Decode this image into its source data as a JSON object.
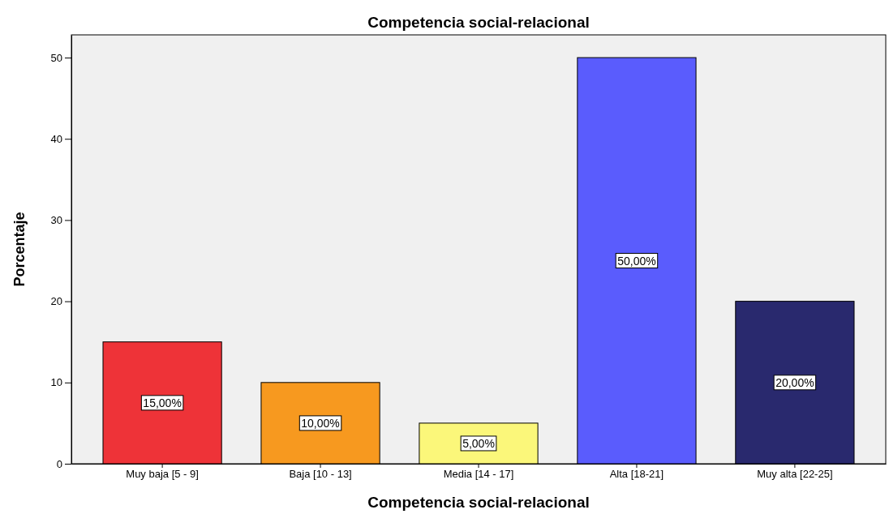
{
  "chart_data": {
    "type": "bar",
    "title": "Competencia social-relacional",
    "xlabel": "Competencia social-relacional",
    "ylabel": "Porcentaje",
    "categories": [
      "Muy baja [5 - 9]",
      "Baja [10 - 13]",
      "Media [14 - 17]",
      "Alta [18-21]",
      "Muy alta [22-25]"
    ],
    "values": [
      15,
      10,
      5,
      50,
      20
    ],
    "colors": [
      "#ee3338",
      "#f7991f",
      "#fbf77a",
      "#5a5cfd",
      "#29296e"
    ],
    "value_labels": [
      "15,00%",
      "10,00%",
      "5,00%",
      "50,00%",
      "20,00%"
    ],
    "ylim": [
      0,
      52.8
    ],
    "yticks": [
      0,
      10,
      20,
      30,
      40,
      50
    ],
    "grid": false
  }
}
